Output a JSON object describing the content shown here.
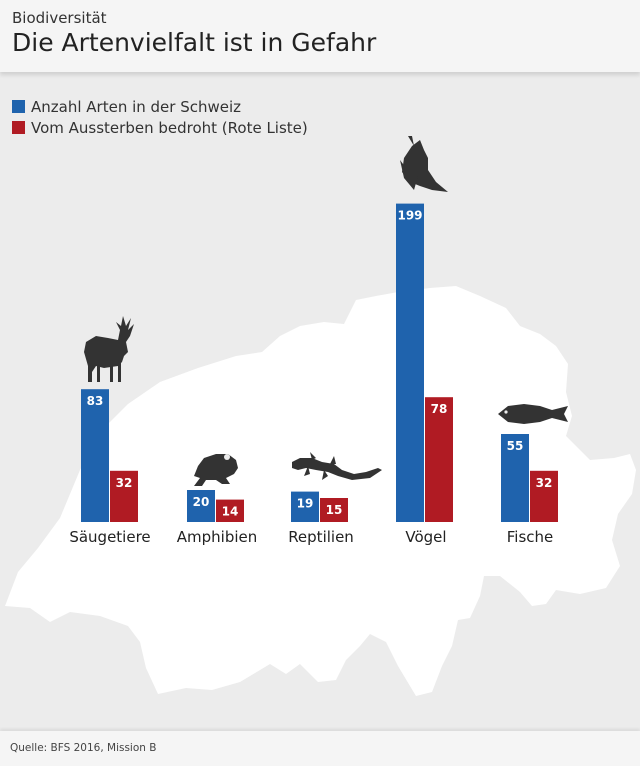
{
  "header": {
    "kicker": "Biodiversität",
    "title": "Die Artenvielfalt ist in Gefahr"
  },
  "legend": [
    {
      "label": "Anzahl Arten in der Schweiz",
      "color": "#1f63ad"
    },
    {
      "label": "Vom Aussterben bedroht (Rote Liste)",
      "color": "#b01b23"
    }
  ],
  "source": "Quelle: BFS 2016, Mission B",
  "icons": [
    "deer-icon",
    "frog-icon",
    "lizard-icon",
    "eagle-icon",
    "fish-icon"
  ],
  "chart_data": {
    "type": "bar",
    "categories": [
      "Säugetiere",
      "Amphibien",
      "Reptilien",
      "Vögel",
      "Fische"
    ],
    "series": [
      {
        "name": "Anzahl Arten in der Schweiz",
        "values": [
          83,
          20,
          19,
          199,
          55
        ],
        "color": "#1f63ad"
      },
      {
        "name": "Vom Aussterben bedroht (Rote Liste)",
        "values": [
          32,
          14,
          15,
          78,
          32
        ],
        "color": "#b01b23"
      }
    ],
    "title": "Die Artenvielfalt ist in Gefahr",
    "ylim": [
      0,
      199
    ],
    "grid": false
  }
}
